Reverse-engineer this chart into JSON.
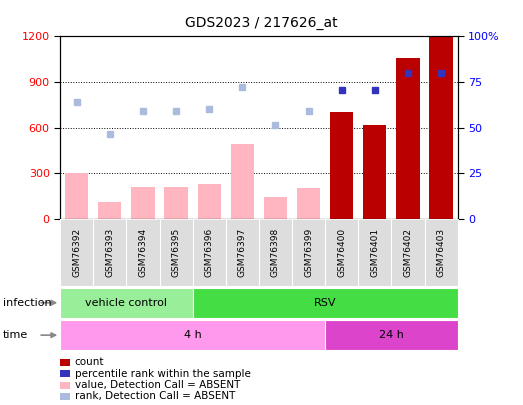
{
  "title": "GDS2023 / 217626_at",
  "samples": [
    "GSM76392",
    "GSM76393",
    "GSM76394",
    "GSM76395",
    "GSM76396",
    "GSM76397",
    "GSM76398",
    "GSM76399",
    "GSM76400",
    "GSM76401",
    "GSM76402",
    "GSM76403"
  ],
  "bar_values": [
    300,
    110,
    210,
    210,
    230,
    490,
    140,
    200,
    700,
    620,
    1060,
    1200
  ],
  "bar_absent": [
    true,
    true,
    true,
    true,
    true,
    true,
    true,
    true,
    false,
    false,
    false,
    false
  ],
  "rank_dots_left": [
    770,
    560,
    710,
    710,
    720,
    870,
    620,
    710,
    null,
    null,
    null,
    null
  ],
  "rank_dots_present": [
    null,
    null,
    null,
    null,
    null,
    null,
    null,
    null,
    850,
    850,
    960,
    960
  ],
  "ylim_left": [
    0,
    1200
  ],
  "ylim_right": [
    0,
    100
  ],
  "yticks_left": [
    0,
    300,
    600,
    900,
    1200
  ],
  "yticks_right": [
    0,
    25,
    50,
    75,
    100
  ],
  "infection_groups": [
    {
      "label": "vehicle control",
      "start": 0,
      "end": 4,
      "color": "#99EE99"
    },
    {
      "label": "RSV",
      "start": 4,
      "end": 12,
      "color": "#44DD44"
    }
  ],
  "time_groups": [
    {
      "label": "4 h",
      "start": 0,
      "end": 8,
      "color": "#FF99EE"
    },
    {
      "label": "24 h",
      "start": 8,
      "end": 12,
      "color": "#DD44CC"
    }
  ],
  "color_bar_absent": "#FFB6C1",
  "color_bar_present": "#BB0000",
  "color_rank_absent": "#AABBDD",
  "color_rank_present": "#3333BB",
  "legend_items": [
    {
      "label": "count",
      "color": "#BB0000"
    },
    {
      "label": "percentile rank within the sample",
      "color": "#3333BB"
    },
    {
      "label": "value, Detection Call = ABSENT",
      "color": "#FFB6C1"
    },
    {
      "label": "rank, Detection Call = ABSENT",
      "color": "#AABBDD"
    }
  ],
  "infection_label": "infection",
  "time_label": "time",
  "fig_width": 5.23,
  "fig_height": 4.05,
  "dpi": 100
}
